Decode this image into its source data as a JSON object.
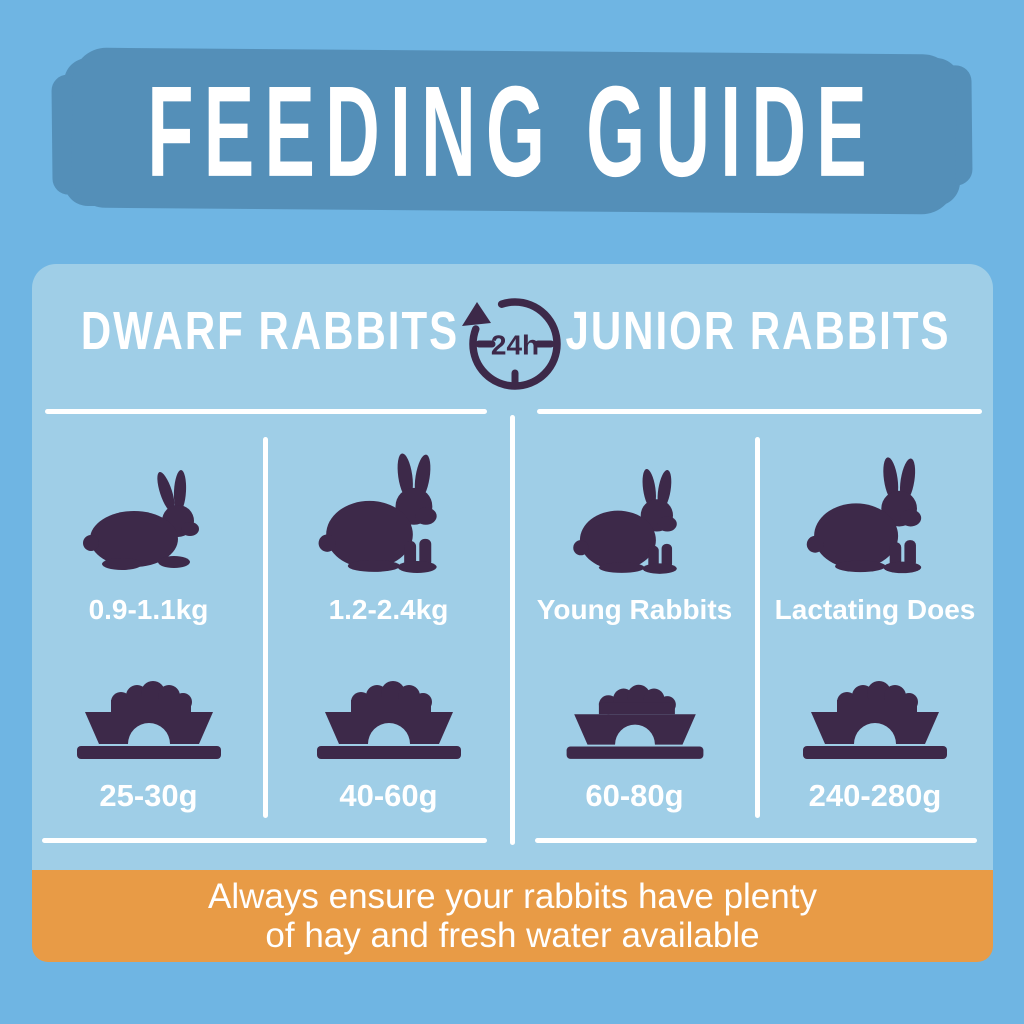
{
  "title": "FEEDING GUIDE",
  "clock_icon": {
    "label": "24h"
  },
  "sections": [
    {
      "heading": "DWARF RABBITS",
      "columns": [
        {
          "subject": "0.9-1.1kg",
          "amount": "25-30g"
        },
        {
          "subject": "1.2-2.4kg",
          "amount": "40-60g"
        }
      ]
    },
    {
      "heading": "JUNIOR RABBITS",
      "columns": [
        {
          "subject": "Young Rabbits",
          "amount": "60-80g"
        },
        {
          "subject": "Lactating Does",
          "amount": "240-280g"
        }
      ]
    }
  ],
  "footer": {
    "line1": "Always ensure your rabbits have plenty",
    "line2": "of hay and fresh water available"
  },
  "colors": {
    "background": "#6fb5e3",
    "banner": "#548fb8",
    "panel": "#9fcee7",
    "accent_purple": "#3d2949",
    "footer_orange": "#e89b46",
    "text": "#ffffff"
  }
}
